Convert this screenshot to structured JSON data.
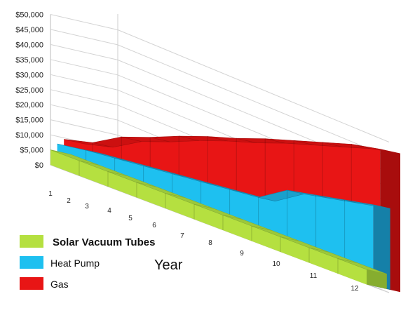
{
  "chart_data": {
    "type": "area",
    "style": "3d",
    "title": "",
    "xlabel": "Year",
    "ylabel": "",
    "ylim": [
      0,
      50000
    ],
    "y_ticks": [
      "$0",
      "$5,000",
      "$10,000",
      "$15,000",
      "$20,000",
      "$25,000",
      "$30,000",
      "$35,000",
      "$40,000",
      "$45,000",
      "$50,000"
    ],
    "categories": [
      "1",
      "2",
      "3",
      "4",
      "5",
      "6",
      "7",
      "8",
      "9",
      "10",
      "11",
      "12"
    ],
    "grid": true,
    "legend_position": "bottom-left",
    "series": [
      {
        "name": "Solar Vacuum Tubes",
        "color": "#b5e040",
        "values": [
          5000,
          5000,
          5000,
          5000,
          5000,
          5000,
          5000,
          5000,
          5000,
          5000,
          5000,
          5000
        ]
      },
      {
        "name": "Heat Pump",
        "color": "#1ec0f0",
        "values": [
          7500,
          9000,
          10000,
          11000,
          12000,
          13000,
          14000,
          15000,
          21000,
          23000,
          25000,
          27000
        ]
      },
      {
        "name": "Gas",
        "color": "#e81515",
        "values": [
          9500,
          12000,
          17500,
          21000,
          25000,
          28500,
          31500,
          35000,
          38000,
          41000,
          44000,
          46000
        ]
      }
    ]
  }
}
